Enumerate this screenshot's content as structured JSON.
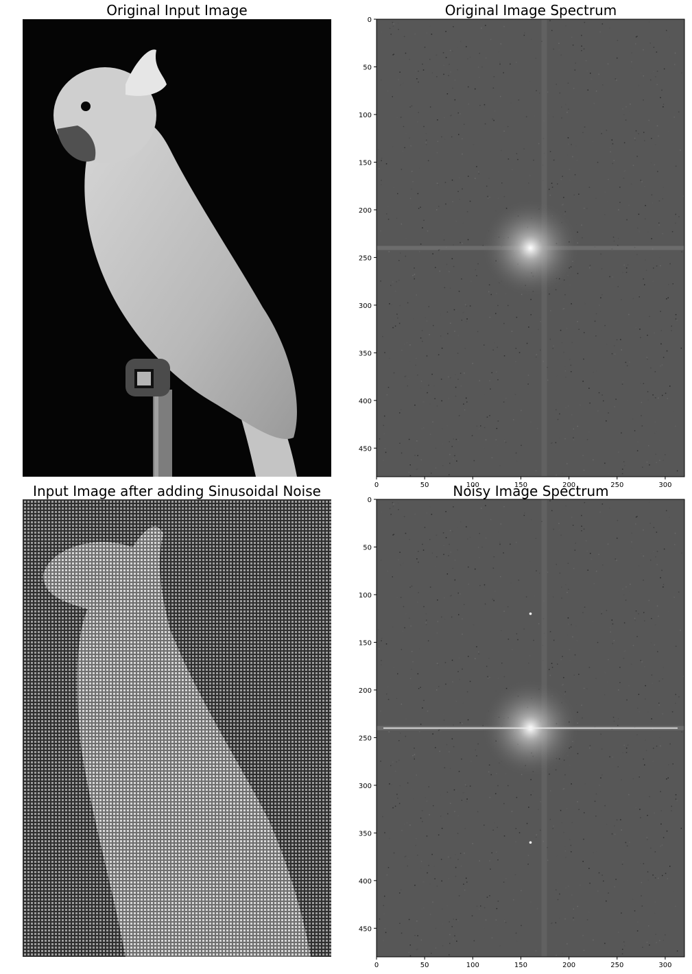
{
  "figure": {
    "background": "#ffffff",
    "panels": [
      {
        "id": "original",
        "title": "Original Input Image",
        "kind": "photo",
        "axes_visible": false
      },
      {
        "id": "original_spectrum",
        "title": "Original Image Spectrum",
        "kind": "spectrum",
        "axes_visible": true
      },
      {
        "id": "noisy",
        "title": "Input Image after adding Sinusoidal Noise",
        "kind": "photo",
        "axes_visible": false
      },
      {
        "id": "noisy_spectrum",
        "title": "Noisy Image Spectrum",
        "kind": "spectrum",
        "axes_visible": true
      }
    ]
  },
  "chart_data": [
    {
      "type": "heatmap",
      "title": "Original Input Image",
      "content": "grayscale photograph of a white cockatoo perched on a post, black background",
      "colormap": "gray",
      "axes": "off"
    },
    {
      "type": "heatmap",
      "title": "Original Image Spectrum",
      "content": "log-magnitude Fourier spectrum, bright DC peak at center",
      "colormap": "gray",
      "xlim": [
        0,
        320
      ],
      "ylim": [
        480,
        0
      ],
      "xticks": [
        0,
        50,
        100,
        150,
        200,
        250,
        300
      ],
      "yticks": [
        0,
        50,
        100,
        150,
        200,
        250,
        300,
        350,
        400,
        450
      ],
      "center": [
        160,
        240
      ]
    },
    {
      "type": "heatmap",
      "title": "Input Image after adding Sinusoidal Noise",
      "content": "cockatoo image overlaid with periodic grid noise pattern",
      "colormap": "gray",
      "axes": "off"
    },
    {
      "type": "heatmap",
      "title": "Noisy Image Spectrum",
      "content": "log-magnitude Fourier spectrum with bright horizontal line and noise peaks",
      "colormap": "gray",
      "xlim": [
        0,
        320
      ],
      "ylim": [
        480,
        0
      ],
      "xticks": [
        0,
        50,
        100,
        150,
        200,
        250,
        300
      ],
      "yticks": [
        0,
        50,
        100,
        150,
        200,
        250,
        300,
        350,
        400,
        450
      ],
      "center": [
        160,
        240
      ],
      "noise_peaks": [
        [
          160,
          120
        ],
        [
          160,
          360
        ]
      ]
    }
  ]
}
